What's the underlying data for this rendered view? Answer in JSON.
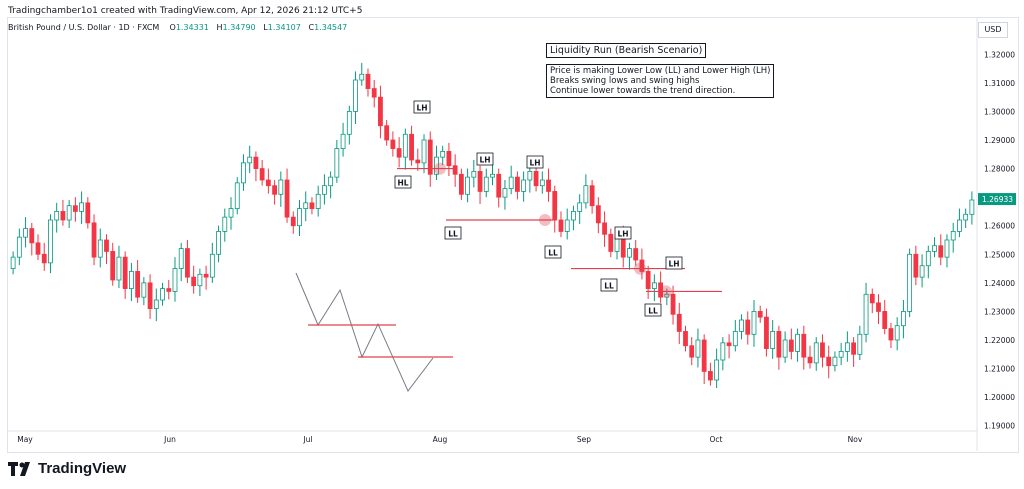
{
  "header": {
    "title": "Tradingchamber1o1 created with TradingView.com, Apr 12, 2026 21:12 UTC+5"
  },
  "symbol": {
    "name": "British Pound / U.S. Dollar · 1D · FXCM",
    "o_label": "O",
    "o_value": "1.34331",
    "h_label": "H",
    "h_value": "1.34790",
    "l_label": "L",
    "l_value": "1.34107",
    "c_label": "C",
    "c_value": "1.34547"
  },
  "currency": "USD",
  "annotation": {
    "title": "Liquidity Run (Bearish Scenario)",
    "lines": [
      "Price is making Lower Low (LL) and Lower High (LH)",
      "Breaks swing lows and swing highs",
      "Continue lower towards the trend direction."
    ]
  },
  "footer": {
    "brand": "TradingView"
  },
  "colors": {
    "up": "#089981",
    "down": "#f23645",
    "level": "#e2404d",
    "zigzag": "#787b86",
    "last_price_bg": "#089981"
  },
  "chart_data": {
    "type": "candlestick",
    "ylim": [
      1.185,
      1.325
    ],
    "yticks": [
      "1.32000",
      "1.31000",
      "1.30000",
      "1.29000",
      "1.28000",
      "1.27000",
      "1.26000",
      "1.25000",
      "1.24000",
      "1.23000",
      "1.22000",
      "1.21000",
      "1.20000",
      "1.19000"
    ],
    "last_price": "1.26933",
    "xticks": [
      "May",
      "Jun",
      "Jul",
      "Aug",
      "Sep",
      "Oct",
      "Nov"
    ],
    "labels": [
      "LH",
      "HL",
      "LH",
      "LH",
      "LL",
      "LL",
      "LH",
      "LH",
      "LL",
      "LL"
    ],
    "series": [
      {
        "o": 1.245,
        "c": 1.249
      },
      {
        "o": 1.249,
        "c": 1.256
      },
      {
        "o": 1.256,
        "c": 1.259
      },
      {
        "o": 1.259,
        "c": 1.254
      },
      {
        "o": 1.254,
        "c": 1.25
      },
      {
        "o": 1.25,
        "c": 1.247
      },
      {
        "o": 1.247,
        "c": 1.262
      },
      {
        "o": 1.262,
        "c": 1.265
      },
      {
        "o": 1.265,
        "c": 1.262
      },
      {
        "o": 1.262,
        "c": 1.267
      },
      {
        "o": 1.267,
        "c": 1.265
      },
      {
        "o": 1.265,
        "c": 1.268
      },
      {
        "o": 1.268,
        "c": 1.261
      },
      {
        "o": 1.261,
        "c": 1.249
      },
      {
        "o": 1.249,
        "c": 1.255
      },
      {
        "o": 1.255,
        "c": 1.251
      },
      {
        "o": 1.251,
        "c": 1.241
      },
      {
        "o": 1.241,
        "c": 1.249
      },
      {
        "o": 1.249,
        "c": 1.238
      },
      {
        "o": 1.238,
        "c": 1.244
      },
      {
        "o": 1.244,
        "c": 1.235
      },
      {
        "o": 1.235,
        "c": 1.24
      },
      {
        "o": 1.24,
        "c": 1.231
      },
      {
        "o": 1.231,
        "c": 1.234
      },
      {
        "o": 1.234,
        "c": 1.238
      },
      {
        "o": 1.238,
        "c": 1.237
      },
      {
        "o": 1.237,
        "c": 1.245
      },
      {
        "o": 1.245,
        "c": 1.252
      },
      {
        "o": 1.252,
        "c": 1.242
      },
      {
        "o": 1.242,
        "c": 1.239
      },
      {
        "o": 1.239,
        "c": 1.243
      },
      {
        "o": 1.243,
        "c": 1.242
      },
      {
        "o": 1.242,
        "c": 1.25
      },
      {
        "o": 1.25,
        "c": 1.258
      },
      {
        "o": 1.258,
        "c": 1.263
      },
      {
        "o": 1.263,
        "c": 1.266
      },
      {
        "o": 1.266,
        "c": 1.275
      },
      {
        "o": 1.275,
        "c": 1.282
      },
      {
        "o": 1.282,
        "c": 1.284
      },
      {
        "o": 1.284,
        "c": 1.28
      },
      {
        "o": 1.28,
        "c": 1.276
      },
      {
        "o": 1.276,
        "c": 1.274
      },
      {
        "o": 1.274,
        "c": 1.271
      },
      {
        "o": 1.271,
        "c": 1.276
      },
      {
        "o": 1.276,
        "c": 1.263
      },
      {
        "o": 1.263,
        "c": 1.26
      },
      {
        "o": 1.26,
        "c": 1.266
      },
      {
        "o": 1.266,
        "c": 1.268
      },
      {
        "o": 1.268,
        "c": 1.266
      },
      {
        "o": 1.266,
        "c": 1.271
      },
      {
        "o": 1.271,
        "c": 1.274
      },
      {
        "o": 1.274,
        "c": 1.277
      },
      {
        "o": 1.277,
        "c": 1.287
      },
      {
        "o": 1.287,
        "c": 1.292
      },
      {
        "o": 1.292,
        "c": 1.3
      },
      {
        "o": 1.3,
        "c": 1.311
      },
      {
        "o": 1.311,
        "c": 1.313
      },
      {
        "o": 1.313,
        "c": 1.308
      },
      {
        "o": 1.308,
        "c": 1.305
      },
      {
        "o": 1.305,
        "c": 1.295
      },
      {
        "o": 1.295,
        "c": 1.29
      },
      {
        "o": 1.29,
        "c": 1.287
      },
      {
        "o": 1.287,
        "c": 1.284
      },
      {
        "o": 1.284,
        "c": 1.292
      },
      {
        "o": 1.292,
        "c": 1.283
      },
      {
        "o": 1.283,
        "c": 1.282
      },
      {
        "o": 1.282,
        "c": 1.29
      },
      {
        "o": 1.29,
        "c": 1.278
      },
      {
        "o": 1.278,
        "c": 1.284
      },
      {
        "o": 1.284,
        "c": 1.286
      },
      {
        "o": 1.286,
        "c": 1.281
      },
      {
        "o": 1.281,
        "c": 1.278
      },
      {
        "o": 1.278,
        "c": 1.271
      },
      {
        "o": 1.271,
        "c": 1.277
      },
      {
        "o": 1.277,
        "c": 1.279
      },
      {
        "o": 1.279,
        "c": 1.272
      },
      {
        "o": 1.272,
        "c": 1.277
      },
      {
        "o": 1.277,
        "c": 1.278
      },
      {
        "o": 1.278,
        "c": 1.27
      },
      {
        "o": 1.27,
        "c": 1.273
      },
      {
        "o": 1.273,
        "c": 1.277
      },
      {
        "o": 1.277,
        "c": 1.272
      },
      {
        "o": 1.272,
        "c": 1.276
      },
      {
        "o": 1.276,
        "c": 1.279
      },
      {
        "o": 1.279,
        "c": 1.274
      },
      {
        "o": 1.274,
        "c": 1.276
      },
      {
        "o": 1.276,
        "c": 1.272
      },
      {
        "o": 1.272,
        "c": 1.262
      },
      {
        "o": 1.262,
        "c": 1.258
      },
      {
        "o": 1.258,
        "c": 1.262
      },
      {
        "o": 1.262,
        "c": 1.265
      },
      {
        "o": 1.265,
        "c": 1.268
      },
      {
        "o": 1.268,
        "c": 1.274
      },
      {
        "o": 1.274,
        "c": 1.267
      },
      {
        "o": 1.267,
        "c": 1.261
      },
      {
        "o": 1.261,
        "c": 1.257
      },
      {
        "o": 1.257,
        "c": 1.251
      },
      {
        "o": 1.251,
        "c": 1.256
      },
      {
        "o": 1.256,
        "c": 1.249
      },
      {
        "o": 1.249,
        "c": 1.252
      },
      {
        "o": 1.252,
        "c": 1.248
      },
      {
        "o": 1.248,
        "c": 1.244
      },
      {
        "o": 1.244,
        "c": 1.238
      },
      {
        "o": 1.238,
        "c": 1.24
      },
      {
        "o": 1.24,
        "c": 1.235
      },
      {
        "o": 1.235,
        "c": 1.236
      },
      {
        "o": 1.236,
        "c": 1.229
      },
      {
        "o": 1.229,
        "c": 1.223
      },
      {
        "o": 1.223,
        "c": 1.218
      },
      {
        "o": 1.218,
        "c": 1.214
      },
      {
        "o": 1.214,
        "c": 1.22
      },
      {
        "o": 1.22,
        "c": 1.209
      },
      {
        "o": 1.209,
        "c": 1.206
      },
      {
        "o": 1.206,
        "c": 1.213
      },
      {
        "o": 1.213,
        "c": 1.219
      },
      {
        "o": 1.219,
        "c": 1.218
      },
      {
        "o": 1.218,
        "c": 1.223
      },
      {
        "o": 1.223,
        "c": 1.227
      },
      {
        "o": 1.227,
        "c": 1.222
      },
      {
        "o": 1.222,
        "c": 1.23
      },
      {
        "o": 1.23,
        "c": 1.228
      },
      {
        "o": 1.228,
        "c": 1.217
      },
      {
        "o": 1.217,
        "c": 1.223
      },
      {
        "o": 1.223,
        "c": 1.214
      },
      {
        "o": 1.214,
        "c": 1.22
      },
      {
        "o": 1.22,
        "c": 1.216
      },
      {
        "o": 1.216,
        "c": 1.222
      },
      {
        "o": 1.222,
        "c": 1.214
      },
      {
        "o": 1.214,
        "c": 1.212
      },
      {
        "o": 1.212,
        "c": 1.219
      },
      {
        "o": 1.219,
        "c": 1.214
      },
      {
        "o": 1.214,
        "c": 1.211
      },
      {
        "o": 1.211,
        "c": 1.214
      },
      {
        "o": 1.214,
        "c": 1.216
      },
      {
        "o": 1.216,
        "c": 1.219
      },
      {
        "o": 1.219,
        "c": 1.215
      },
      {
        "o": 1.215,
        "c": 1.222
      },
      {
        "o": 1.222,
        "c": 1.236
      },
      {
        "o": 1.236,
        "c": 1.233
      },
      {
        "o": 1.233,
        "c": 1.23
      },
      {
        "o": 1.23,
        "c": 1.224
      },
      {
        "o": 1.224,
        "c": 1.22
      },
      {
        "o": 1.22,
        "c": 1.225
      },
      {
        "o": 1.225,
        "c": 1.23
      },
      {
        "o": 1.23,
        "c": 1.25
      },
      {
        "o": 1.25,
        "c": 1.242
      },
      {
        "o": 1.242,
        "c": 1.246
      },
      {
        "o": 1.246,
        "c": 1.251
      },
      {
        "o": 1.251,
        "c": 1.253
      },
      {
        "o": 1.253,
        "c": 1.249
      },
      {
        "o": 1.249,
        "c": 1.255
      },
      {
        "o": 1.255,
        "c": 1.258
      },
      {
        "o": 1.258,
        "c": 1.262
      },
      {
        "o": 1.262,
        "c": 1.264
      },
      {
        "o": 1.264,
        "c": 1.269
      }
    ]
  }
}
